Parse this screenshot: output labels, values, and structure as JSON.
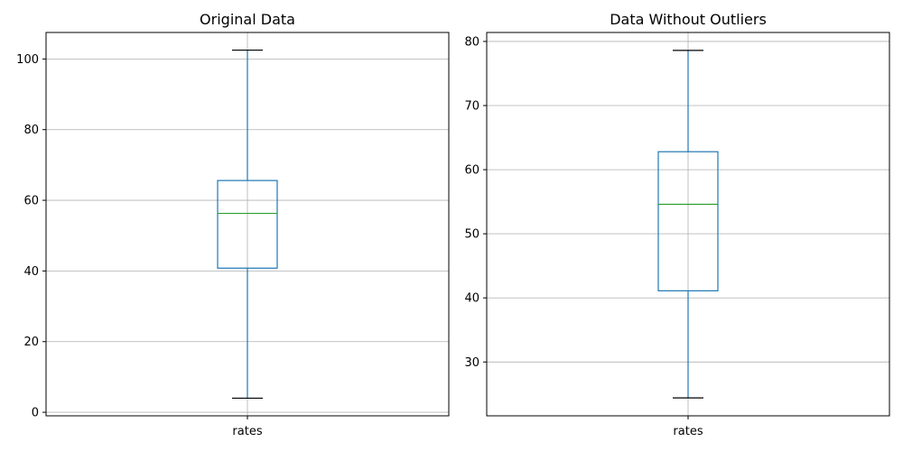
{
  "colors": {
    "box": "#1f77b4",
    "median": "#2ca02c",
    "cap": "#000000",
    "grid": "#b0b0b0",
    "frame": "#000000"
  },
  "chart_data": [
    {
      "type": "box",
      "title": "Original Data",
      "categories": [
        "rates"
      ],
      "ylim": [
        -1,
        107.5
      ],
      "yticks": [
        0,
        20,
        40,
        60,
        80,
        100
      ],
      "grid": true,
      "boxes": [
        {
          "label": "rates",
          "whisker_low": 4.0,
          "q1": 40.8,
          "median": 56.3,
          "q3": 65.6,
          "whisker_high": 102.5
        }
      ]
    },
    {
      "type": "box",
      "title": "Data Without Outliers",
      "categories": [
        "rates"
      ],
      "ylim": [
        21.6,
        81.4
      ],
      "yticks": [
        30,
        40,
        50,
        60,
        70,
        80
      ],
      "grid": true,
      "boxes": [
        {
          "label": "rates",
          "whisker_low": 24.4,
          "q1": 41.1,
          "median": 54.6,
          "q3": 62.8,
          "whisker_high": 78.6
        }
      ]
    }
  ]
}
